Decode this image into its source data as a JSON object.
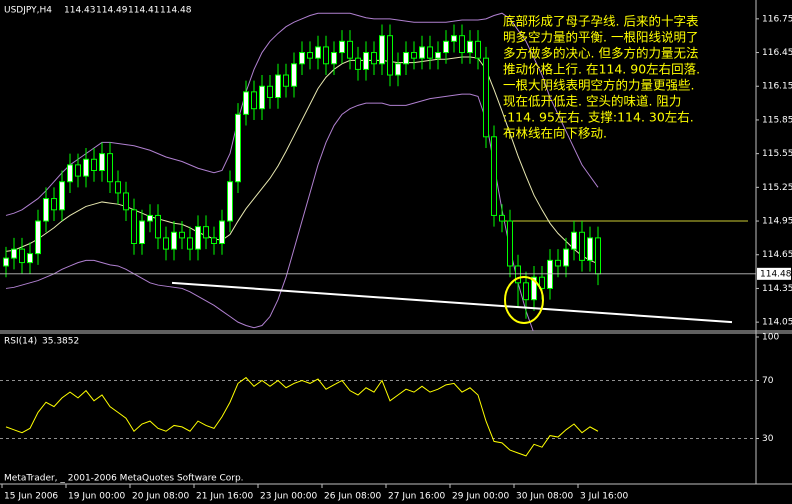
{
  "chart_data": [
    {
      "type": "candlestick",
      "title": "USDJPY,H4",
      "header_values": [
        114.43,
        114.49,
        114.41,
        114.48
      ],
      "categories": [
        "15 Jun 2006",
        null,
        null,
        null,
        null,
        null,
        null,
        null,
        "19 Jun 00:00",
        null,
        null,
        null,
        null,
        null,
        null,
        null,
        "20 Jun 08:00",
        null,
        null,
        null,
        null,
        null,
        null,
        null,
        "21 Jun 16:00",
        null,
        null,
        null,
        null,
        null,
        null,
        null,
        "23 Jun 00:00",
        null,
        null,
        null,
        null,
        null,
        null,
        null,
        "26 Jun 08:00",
        null,
        null,
        null,
        null,
        null,
        null,
        null,
        "27 Jun 16:00",
        null,
        null,
        null,
        null,
        null,
        null,
        null,
        "29 Jun 00:00",
        null,
        null,
        null,
        null,
        null,
        null,
        null,
        "30 Jun 08:00",
        null,
        null,
        null,
        null,
        null,
        null,
        null,
        "3 Jul 16:00",
        null,
        null
      ],
      "open": [
        114.55,
        114.62,
        114.7,
        114.58,
        114.66,
        114.95,
        115.15,
        115.05,
        115.3,
        115.45,
        115.35,
        115.5,
        115.4,
        115.55,
        115.3,
        115.2,
        115.05,
        114.75,
        114.95,
        115.0,
        114.8,
        114.7,
        114.85,
        114.8,
        114.7,
        114.9,
        114.8,
        114.75,
        114.95,
        115.3,
        115.9,
        116.1,
        115.95,
        116.15,
        116.05,
        116.25,
        116.15,
        116.35,
        116.45,
        116.4,
        116.5,
        116.35,
        116.45,
        116.55,
        116.4,
        116.3,
        116.45,
        116.35,
        116.6,
        116.25,
        116.35,
        116.45,
        116.4,
        116.5,
        116.4,
        116.45,
        116.55,
        116.6,
        116.45,
        116.55,
        116.4,
        115.7,
        115.0,
        114.95,
        114.55,
        114.4,
        114.25,
        114.45,
        114.35,
        114.6,
        114.55,
        114.7,
        114.85,
        114.6,
        114.8
      ],
      "high": [
        114.72,
        114.8,
        114.8,
        114.76,
        115.05,
        115.25,
        115.25,
        115.4,
        115.55,
        115.55,
        115.6,
        115.6,
        115.65,
        115.65,
        115.4,
        115.3,
        115.15,
        115.05,
        115.1,
        115.1,
        114.9,
        114.95,
        114.95,
        114.9,
        115.0,
        115.0,
        114.9,
        115.05,
        115.4,
        116.0,
        116.2,
        116.2,
        116.25,
        116.25,
        116.35,
        116.35,
        116.45,
        116.55,
        116.55,
        116.6,
        116.6,
        116.55,
        116.65,
        116.65,
        116.5,
        116.55,
        116.55,
        116.7,
        116.7,
        116.45,
        116.55,
        116.55,
        116.6,
        116.6,
        116.55,
        116.65,
        116.7,
        116.7,
        116.65,
        116.65,
        116.5,
        115.8,
        115.1,
        115.05,
        114.65,
        114.5,
        114.55,
        114.55,
        114.7,
        114.7,
        114.8,
        114.95,
        114.95,
        114.9,
        114.9
      ],
      "low": [
        114.45,
        114.52,
        114.48,
        114.48,
        114.56,
        114.85,
        114.95,
        114.95,
        115.2,
        115.25,
        115.25,
        115.3,
        115.3,
        115.2,
        115.1,
        114.95,
        114.65,
        114.65,
        114.85,
        114.7,
        114.6,
        114.6,
        114.7,
        114.6,
        114.6,
        114.7,
        114.65,
        114.65,
        114.85,
        115.2,
        115.8,
        115.85,
        115.85,
        115.95,
        115.95,
        116.05,
        116.05,
        116.25,
        116.3,
        116.3,
        116.25,
        116.25,
        116.35,
        116.3,
        116.2,
        116.2,
        116.25,
        116.25,
        116.15,
        116.15,
        116.25,
        116.3,
        116.3,
        116.3,
        116.3,
        116.35,
        116.45,
        116.35,
        116.35,
        116.3,
        115.6,
        114.9,
        114.85,
        114.45,
        114.18,
        114.08,
        114.15,
        114.25,
        114.25,
        114.45,
        114.45,
        114.6,
        114.5,
        114.5,
        114.38
      ],
      "close": [
        114.62,
        114.7,
        114.58,
        114.66,
        114.95,
        115.15,
        115.05,
        115.3,
        115.45,
        115.35,
        115.5,
        115.4,
        115.55,
        115.3,
        115.2,
        115.05,
        114.75,
        114.95,
        115.0,
        114.8,
        114.7,
        114.85,
        114.8,
        114.7,
        114.9,
        114.8,
        114.75,
        114.95,
        115.3,
        115.9,
        116.1,
        115.95,
        116.15,
        116.05,
        116.25,
        116.15,
        116.35,
        116.45,
        116.4,
        116.5,
        116.35,
        116.45,
        116.55,
        116.4,
        116.3,
        116.45,
        116.35,
        116.6,
        116.25,
        116.35,
        116.45,
        116.4,
        116.5,
        116.4,
        116.45,
        116.55,
        116.6,
        116.45,
        116.55,
        116.4,
        115.7,
        115.0,
        114.95,
        114.55,
        114.4,
        114.25,
        114.45,
        114.35,
        114.6,
        114.55,
        114.7,
        114.85,
        114.6,
        114.8,
        114.48
      ],
      "up_color": "#ffffff",
      "down_color": "#000000",
      "wick_color": "#00ff00",
      "overlays": [
        {
          "color": "#b080d0",
          "values": [
            115.0,
            115.02,
            115.05,
            115.1,
            115.15,
            115.22,
            115.3,
            115.38,
            115.45,
            115.5,
            115.55,
            115.6,
            115.65,
            115.65,
            115.64,
            115.63,
            115.62,
            115.6,
            115.58,
            115.55,
            115.52,
            115.5,
            115.48,
            115.45,
            115.42,
            115.4,
            115.38,
            115.4,
            115.55,
            115.85,
            116.1,
            116.3,
            116.45,
            116.55,
            116.62,
            116.68,
            116.72,
            116.75,
            116.78,
            116.8,
            116.8,
            116.8,
            116.8,
            116.8,
            116.78,
            116.76,
            116.75,
            116.75,
            116.75,
            116.74,
            116.73,
            116.72,
            116.72,
            116.72,
            116.72,
            116.72,
            116.73,
            116.74,
            116.74,
            116.74,
            116.75,
            116.78,
            116.8,
            116.75,
            116.65,
            116.55,
            116.4,
            116.25,
            116.05,
            115.9,
            115.75,
            115.6,
            115.45,
            115.35,
            115.25
          ]
        },
        {
          "color": "#e8e8b0",
          "values": [
            114.68,
            114.69,
            114.72,
            114.75,
            114.79,
            114.84,
            114.89,
            114.95,
            115.0,
            115.04,
            115.08,
            115.1,
            115.12,
            115.11,
            115.1,
            115.08,
            115.05,
            115.02,
            114.99,
            114.97,
            114.95,
            114.93,
            114.92,
            114.89,
            114.85,
            114.82,
            114.79,
            114.78,
            114.83,
            114.95,
            115.06,
            115.15,
            115.24,
            115.33,
            115.44,
            115.57,
            115.71,
            115.85,
            115.99,
            116.13,
            116.23,
            116.3,
            116.35,
            116.38,
            116.38,
            116.38,
            116.38,
            116.38,
            116.37,
            116.36,
            116.36,
            116.36,
            116.37,
            116.38,
            116.39,
            116.39,
            116.4,
            116.41,
            116.41,
            116.4,
            116.3,
            116.12,
            115.93,
            115.73,
            115.53,
            115.35,
            115.18,
            115.05,
            114.93,
            114.84,
            114.77,
            114.7,
            114.64,
            114.6,
            114.57
          ]
        },
        {
          "color": "#b080d0",
          "values": [
            114.35,
            114.36,
            114.38,
            114.4,
            114.42,
            114.45,
            114.48,
            114.52,
            114.55,
            114.58,
            114.6,
            114.6,
            114.58,
            114.56,
            114.55,
            114.52,
            114.48,
            114.44,
            114.4,
            114.38,
            114.37,
            114.36,
            114.35,
            114.32,
            114.28,
            114.24,
            114.2,
            114.15,
            114.1,
            114.05,
            114.02,
            114.0,
            114.02,
            114.1,
            114.25,
            114.45,
            114.7,
            114.95,
            115.2,
            115.45,
            115.65,
            115.8,
            115.9,
            115.95,
            115.98,
            116.0,
            116.0,
            116.0,
            115.98,
            115.98,
            115.98,
            116.0,
            116.02,
            116.04,
            116.05,
            116.06,
            116.07,
            116.08,
            116.08,
            116.06,
            115.85,
            115.45,
            115.05,
            114.7,
            114.4,
            114.15,
            113.95,
            113.85,
            113.8,
            113.78,
            113.78,
            113.8,
            113.82,
            113.85,
            113.88
          ]
        }
      ],
      "hlines": [
        {
          "value": 114.95,
          "color": "#cccc33"
        }
      ],
      "trend_line": [
        114.4,
        114.05
      ],
      "last_price": 114.48,
      "ylim": [
        113.98,
        116.9
      ],
      "yticks": [
        116.75,
        116.45,
        116.15,
        115.85,
        115.55,
        115.25,
        114.95,
        114.65,
        114.35,
        114.05
      ],
      "annotation": [
        "底部形成了母子孕线. 后来的十字表",
        "明多空力量的平衡. 一根阳线说明了",
        "多方做多的决心. 但多方的力量无法",
        "推动价格上行. 在114. 90左右回落.",
        "一根大阴线表明空方的力量更强些.",
        "现在低开低走. 空头的味道. 阻力",
        ":114. 95左右. 支撑:114. 30左右.",
        "布林线在向下移动."
      ],
      "annotation_color": "#ffff00"
    },
    {
      "type": "line",
      "title": "RSI(14)",
      "last_value": 35.3852,
      "series": [
        {
          "color": "#ffff00",
          "values": [
            38,
            36,
            34,
            37,
            48,
            55,
            52,
            58,
            62,
            58,
            63,
            56,
            60,
            52,
            48,
            44,
            35,
            40,
            42,
            37,
            35,
            39,
            38,
            35,
            42,
            39,
            37,
            45,
            55,
            68,
            72,
            66,
            70,
            66,
            70,
            65,
            68,
            70,
            68,
            71,
            64,
            67,
            70,
            63,
            60,
            65,
            62,
            70,
            56,
            60,
            64,
            62,
            66,
            62,
            64,
            67,
            68,
            62,
            65,
            60,
            42,
            28,
            27,
            22,
            20,
            18,
            26,
            24,
            32,
            31,
            36,
            40,
            34,
            38,
            35
          ]
        }
      ],
      "levels": [
        70,
        30
      ],
      "ylim": [
        0,
        100
      ],
      "yticks": [
        100,
        70,
        30
      ],
      "copyright": "MetaTrader, _ 2001-2006 MetaQuotes Software Corp."
    }
  ]
}
